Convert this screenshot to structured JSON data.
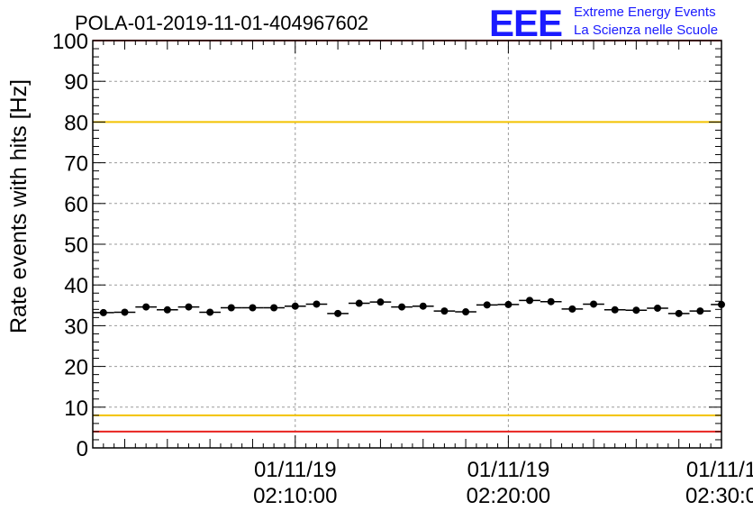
{
  "chart_data": {
    "type": "scatter",
    "title": "POLA-01-2019-11-01-404967602",
    "ylabel": "Rate events with hits [Hz]",
    "xlabel": "",
    "ylim": [
      0,
      100
    ],
    "yticks": [
      0,
      10,
      20,
      30,
      40,
      50,
      60,
      70,
      80,
      90,
      100
    ],
    "x_time_range": [
      "2019-11-01 02:00:30",
      "2019-11-01 02:30:00"
    ],
    "xtick_labels": [
      {
        "time": "2019-11-01 02:10:00",
        "date": "01/11/19",
        "clock": "02:10:00"
      },
      {
        "time": "2019-11-01 02:20:00",
        "date": "01/11/19",
        "clock": "02:20:00"
      },
      {
        "time": "2019-11-01 02:30:00",
        "date": "01/11/1",
        "clock": "02:30:0"
      }
    ],
    "grid": true,
    "reference_lines": [
      {
        "y": 100,
        "color": "#e8231f"
      },
      {
        "y": 80,
        "color": "#f2c200"
      },
      {
        "y": 8,
        "color": "#f2c200"
      },
      {
        "y": 4,
        "color": "#e8231f"
      }
    ],
    "series": [
      {
        "x": [
          "02:01:00",
          "02:02:00",
          "02:03:00",
          "02:04:00",
          "02:05:00",
          "02:06:00",
          "02:07:00",
          "02:08:00",
          "02:09:00",
          "02:10:00",
          "02:11:00",
          "02:12:00",
          "02:13:00",
          "02:14:00",
          "02:15:00",
          "02:16:00",
          "02:17:00",
          "02:18:00",
          "02:19:00",
          "02:20:00",
          "02:21:00",
          "02:22:00",
          "02:23:00",
          "02:24:00",
          "02:25:00",
          "02:26:00",
          "02:27:00",
          "02:28:00",
          "02:29:00",
          "02:30:00"
        ],
        "values": [
          33.2,
          33.3,
          34.6,
          33.9,
          34.6,
          33.3,
          34.4,
          34.4,
          34.4,
          34.8,
          35.3,
          33.0,
          35.5,
          35.8,
          34.6,
          34.8,
          33.6,
          33.4,
          35.1,
          35.2,
          36.2,
          35.9,
          34.1,
          35.3,
          33.9,
          33.8,
          34.3,
          33.0,
          33.6,
          35.2
        ],
        "color": "#000000"
      }
    ]
  },
  "logo": {
    "text": "EEE",
    "line1": "Extreme Energy Events",
    "line2": "La Scienza nelle Scuole",
    "color": "#1a1aff"
  }
}
